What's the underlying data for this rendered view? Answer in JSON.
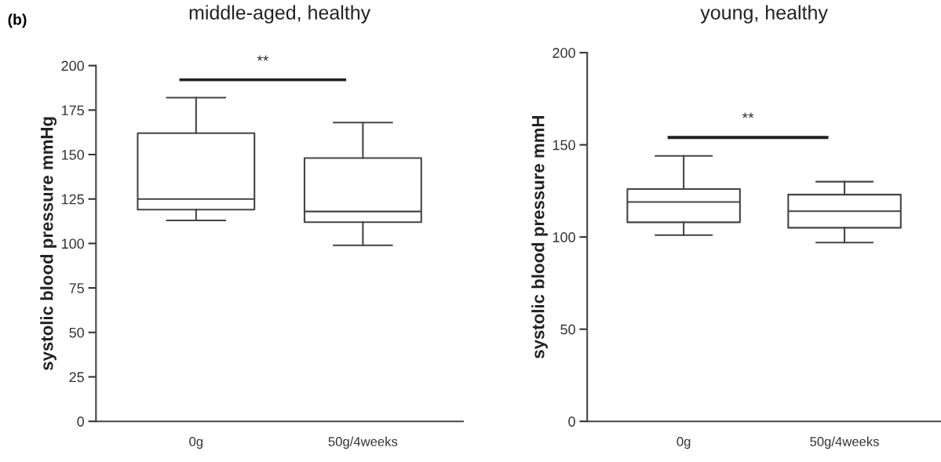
{
  "chart_data": [
    {
      "type": "box",
      "title": "middle-aged, healthy",
      "ylabel": "systolic blood pressure mmHg",
      "categories": [
        "0g",
        "50g/4weeks"
      ],
      "boxes": [
        {
          "low": 113,
          "q1": 119,
          "median": 125,
          "q3": 162,
          "high": 182
        },
        {
          "low": 99,
          "q1": 112,
          "median": 118,
          "q3": 148,
          "high": 168
        }
      ],
      "ylim": [
        0,
        200
      ],
      "yticks": [
        0,
        25,
        50,
        75,
        100,
        125,
        150,
        175,
        200
      ],
      "annotations": [
        "(b)",
        "**"
      ]
    },
    {
      "type": "box",
      "title": "young, healthy",
      "ylabel": "systolic blood pressure mmH",
      "categories": [
        "0g",
        "50g/4weeks"
      ],
      "boxes": [
        {
          "low": 101,
          "q1": 108,
          "median": 119,
          "q3": 126,
          "high": 144
        },
        {
          "low": 97,
          "q1": 105,
          "median": 114,
          "q3": 123,
          "high": 130
        }
      ],
      "ylim": [
        0,
        200
      ],
      "yticks": [
        0,
        50,
        100,
        150,
        200
      ],
      "annotations": [
        "**"
      ]
    }
  ]
}
